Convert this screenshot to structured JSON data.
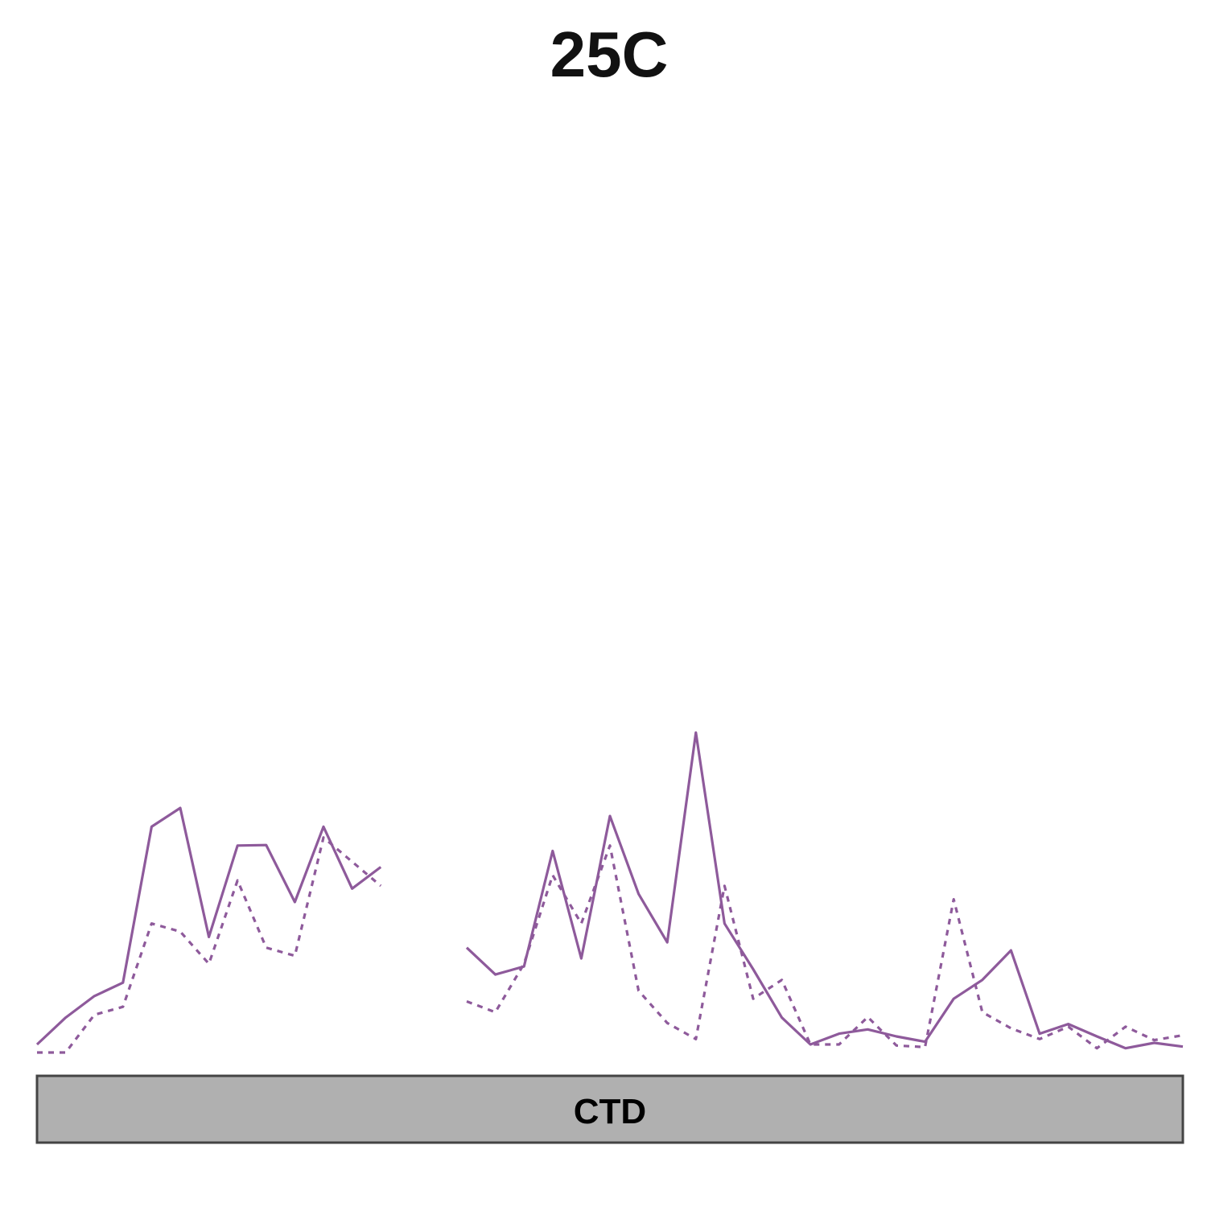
{
  "chart_data": {
    "type": "line",
    "title": "25C",
    "xlabel": "",
    "ylabel": "",
    "x": [
      1,
      2,
      3,
      4,
      5,
      6,
      7,
      8,
      9,
      10,
      11,
      12,
      13,
      14,
      15,
      16,
      17,
      18,
      19,
      20,
      21,
      22,
      23,
      24,
      25,
      26,
      27,
      28,
      29,
      30,
      31,
      32,
      33,
      34,
      35,
      36,
      37,
      38,
      39,
      40,
      41
    ],
    "xlim": [
      1,
      41
    ],
    "ylim": [
      0,
      100
    ],
    "grid": false,
    "legend": "none",
    "series": [
      {
        "style": "solid",
        "color": "#8e5a9b",
        "values": [
          1.5,
          6.5,
          10.5,
          13,
          42,
          45.5,
          21.5,
          38.5,
          38.6,
          28,
          42,
          30.5,
          34.5,
          null,
          null,
          19.5,
          14.5,
          16,
          37.5,
          17.5,
          44,
          29.5,
          20.5,
          59.5,
          24,
          15.5,
          6.5,
          1.5,
          3.5,
          4.3,
          3,
          2,
          10,
          13.5,
          19,
          3.5,
          5.3,
          3,
          0.8,
          1.8,
          1.1
        ]
      },
      {
        "style": "dashed",
        "color": "#8e5a9b",
        "values": [
          0,
          0,
          7,
          8.5,
          24,
          22.5,
          16.5,
          32,
          19.5,
          18,
          40,
          35.5,
          31,
          null,
          null,
          9.5,
          7.5,
          16.5,
          33,
          24,
          38.5,
          11.5,
          5.5,
          2.5,
          31,
          10,
          13.5,
          1.5,
          1.5,
          6.6,
          1.3,
          1,
          28.5,
          7.5,
          4.5,
          2.5,
          4.8,
          0.8,
          4.8,
          2.3,
          3.2
        ]
      }
    ],
    "domain_bar": {
      "label": "CTD",
      "fill": "#b0b0b0",
      "stroke": "#444444"
    }
  }
}
